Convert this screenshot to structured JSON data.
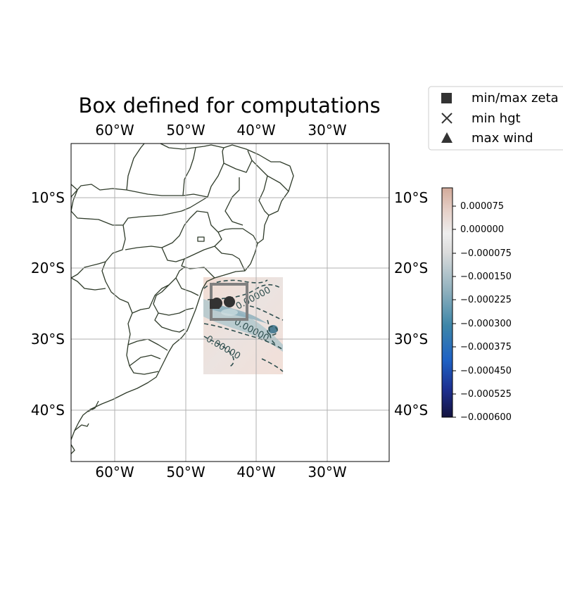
{
  "title": "Box defined for computations",
  "map": {
    "top_longitude_ticks": [
      "60°W",
      "50°W",
      "40°W",
      "30°W"
    ],
    "bottom_longitude_ticks": [
      "60°W",
      "50°W",
      "40°W",
      "30°W"
    ],
    "left_latitude_ticks": [
      "10°S",
      "20°S",
      "30°S",
      "40°S"
    ],
    "right_latitude_ticks": [
      "10°S",
      "20°S",
      "30°S",
      "40°S"
    ],
    "gridlines": true,
    "contour_labels": [
      "0.00000",
      "0.00000",
      "0.00000"
    ]
  },
  "legend": {
    "placement": "top-right",
    "items": [
      {
        "label": "min/max zeta",
        "marker": "square"
      },
      {
        "label": "min hgt",
        "marker": "x"
      },
      {
        "label": "max wind",
        "marker": "triangle"
      }
    ]
  },
  "colorbar": {
    "ticks": [
      "0.000075",
      "0.000000",
      "−0.000075",
      "−0.000150",
      "−0.000225",
      "−0.000300",
      "−0.000375",
      "−0.000450",
      "−0.000525",
      "−0.000600"
    ]
  },
  "colors": {
    "coastline": "#2f3b2a",
    "box": "#808080",
    "marker": "#333333",
    "contour": "#2f4f4f"
  }
}
